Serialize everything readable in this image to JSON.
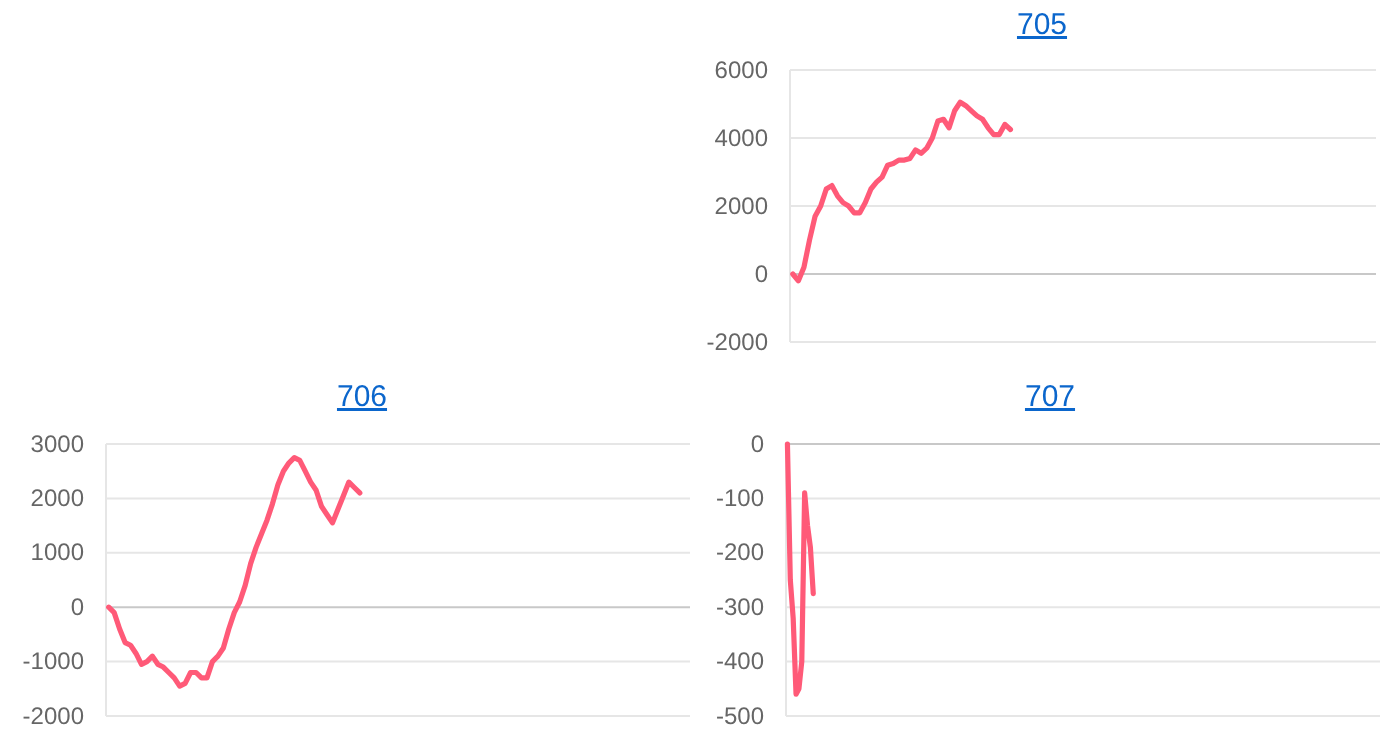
{
  "chart_data": [
    {
      "type": "line",
      "title": "705",
      "color": "#ff5a78",
      "ylim": [
        -2000,
        6000
      ],
      "yticks": [
        -2000,
        0,
        2000,
        4000,
        6000
      ],
      "grid": "y",
      "tick_labels": "y",
      "marker": "none",
      "line_style": "solid",
      "categories": [
        null,
        null,
        null,
        null,
        null,
        null,
        null,
        null,
        null,
        null,
        null,
        null,
        null,
        null,
        null,
        null,
        null,
        null,
        null,
        null,
        null,
        null,
        null,
        null,
        null,
        null,
        null,
        null,
        null,
        null,
        null,
        null,
        null,
        null,
        null,
        null,
        null,
        null,
        null,
        null,
        null,
        null,
        null,
        null,
        null,
        null,
        null,
        null,
        null,
        null,
        null,
        null,
        null,
        null,
        null,
        null,
        null,
        null,
        null,
        null,
        null,
        null,
        null,
        null,
        null,
        null,
        null,
        null,
        null,
        null,
        null,
        null,
        null,
        null,
        null,
        null,
        null,
        null,
        null,
        null,
        null,
        null,
        null,
        null,
        null,
        null,
        null,
        null,
        null,
        null,
        null,
        null,
        null,
        null,
        null,
        null,
        null,
        null,
        null,
        null,
        null,
        null,
        null,
        null,
        null
      ],
      "values": [
        0,
        -200,
        200,
        1000,
        1700,
        2000,
        2500,
        2600,
        2300,
        2100,
        2000,
        1800,
        1800,
        2100,
        2500,
        2700,
        2850,
        3200,
        3250,
        3350,
        3350,
        3400,
        3650,
        3550,
        3700,
        4000,
        4500,
        4550,
        4300,
        4800,
        5050,
        4950,
        4800,
        4650,
        4550,
        4300,
        4100,
        4100,
        4400,
        4250,
        null,
        null,
        null,
        null,
        null,
        null,
        null,
        null,
        null,
        null,
        null,
        null,
        null,
        null,
        null,
        null,
        null,
        null,
        null,
        null,
        null,
        null,
        null,
        null,
        null,
        null,
        null,
        null,
        null,
        null,
        null,
        null,
        null,
        null,
        null,
        null,
        null,
        null,
        null,
        null,
        null,
        null,
        null,
        null,
        null,
        null,
        null,
        null,
        null,
        null,
        null,
        null,
        null,
        null,
        null,
        null,
        null,
        null,
        null,
        null,
        null,
        null,
        null,
        null,
        null
      ]
    },
    {
      "type": "line",
      "title": "706",
      "color": "#ff5a78",
      "ylim": [
        -2000,
        3000
      ],
      "yticks": [
        -2000,
        -1000,
        0,
        1000,
        2000,
        3000
      ],
      "grid": "y",
      "tick_labels": "y",
      "marker": "none",
      "line_style": "solid",
      "categories": [
        null,
        null,
        null,
        null,
        null,
        null,
        null,
        null,
        null,
        null,
        null,
        null,
        null,
        null,
        null,
        null,
        null,
        null,
        null,
        null,
        null,
        null,
        null,
        null,
        null,
        null,
        null,
        null,
        null,
        null,
        null,
        null,
        null,
        null,
        null,
        null,
        null,
        null,
        null,
        null,
        null,
        null,
        null,
        null,
        null,
        null,
        null,
        null,
        null,
        null,
        null,
        null,
        null,
        null,
        null,
        null,
        null,
        null,
        null,
        null,
        null,
        null,
        null,
        null,
        null,
        null,
        null,
        null,
        null,
        null,
        null,
        null,
        null,
        null,
        null,
        null,
        null,
        null,
        null,
        null,
        null,
        null,
        null,
        null,
        null,
        null,
        null,
        null,
        null,
        null,
        null,
        null,
        null,
        null,
        null,
        null,
        null,
        null,
        null,
        null,
        null,
        null,
        null,
        null,
        null,
        null,
        null
      ],
      "values": [
        0,
        -100,
        -400,
        -650,
        -700,
        -850,
        -1050,
        -1000,
        -900,
        -1050,
        -1100,
        -1200,
        -1300,
        -1450,
        -1400,
        -1200,
        -1200,
        -1300,
        -1300,
        -1000,
        -900,
        -750,
        -400,
        -100,
        100,
        400,
        800,
        1100,
        1350,
        1600,
        1900,
        2250,
        2500,
        2650,
        2750,
        2700,
        2500,
        2300,
        2150,
        1850,
        1700,
        1550,
        1800,
        2050,
        2300,
        2200,
        2100,
        null,
        null,
        null,
        null,
        null,
        null,
        null,
        null,
        null,
        null,
        null,
        null,
        null,
        null,
        null,
        null,
        null,
        null,
        null,
        null,
        null,
        null,
        null,
        null,
        null,
        null,
        null,
        null,
        null,
        null,
        null,
        null,
        null,
        null,
        null,
        null,
        null,
        null,
        null,
        null,
        null,
        null,
        null,
        null,
        null,
        null,
        null,
        null,
        null,
        null,
        null,
        null,
        null,
        null,
        null,
        null,
        null,
        null,
        null,
        null
      ]
    },
    {
      "type": "line",
      "title": "707",
      "color": "#ff5a78",
      "ylim": [
        -500,
        0
      ],
      "yticks": [
        -500,
        -400,
        -300,
        -200,
        -100,
        0
      ],
      "grid": "y",
      "tick_labels": "y",
      "marker": "none",
      "line_style": "solid",
      "categories": [
        null,
        null,
        null,
        null,
        null,
        null,
        null,
        null,
        null,
        null,
        null,
        null,
        null,
        null,
        null,
        null,
        null,
        null,
        null,
        null,
        null,
        null,
        null,
        null,
        null,
        null,
        null,
        null,
        null,
        null,
        null,
        null,
        null,
        null,
        null,
        null,
        null,
        null,
        null,
        null,
        null,
        null,
        null,
        null,
        null,
        null,
        null,
        null,
        null,
        null,
        null,
        null,
        null,
        null,
        null,
        null,
        null,
        null,
        null,
        null,
        null,
        null,
        null,
        null,
        null,
        null,
        null,
        null,
        null,
        null,
        null,
        null,
        null,
        null,
        null,
        null,
        null,
        null,
        null,
        null,
        null,
        null,
        null,
        null,
        null,
        null,
        null,
        null,
        null,
        null,
        null,
        null,
        null,
        null,
        null,
        null,
        null,
        null,
        null,
        null,
        null,
        null,
        null,
        null,
        null,
        null,
        null,
        null,
        null,
        null,
        null,
        null,
        null,
        null,
        null,
        null,
        null,
        null,
        null,
        null,
        null,
        null,
        null,
        null,
        null,
        null,
        null,
        null,
        null,
        null,
        null,
        null,
        null,
        null,
        null,
        null,
        null,
        null,
        null,
        null,
        null,
        null,
        null,
        null,
        null,
        null,
        null,
        null,
        null,
        null,
        null,
        null,
        null,
        null,
        null,
        null,
        null,
        null,
        null,
        null,
        null,
        null,
        null,
        null,
        null,
        null,
        null,
        null,
        null,
        null,
        null,
        null,
        null,
        null,
        null,
        null,
        null,
        null,
        null,
        null,
        null,
        null,
        null,
        null,
        null,
        null,
        null,
        null,
        null,
        null,
        null,
        null,
        null,
        null,
        null,
        null,
        null,
        null,
        null,
        null,
        null,
        null,
        null,
        null,
        null,
        null,
        null
      ],
      "values": [
        0,
        -250,
        -320,
        -460,
        -450,
        -400,
        -90,
        -150,
        -190,
        -275,
        null,
        null,
        null,
        null,
        null,
        null,
        null,
        null,
        null,
        null,
        null,
        null,
        null,
        null,
        null,
        null,
        null,
        null,
        null,
        null,
        null,
        null,
        null,
        null,
        null,
        null,
        null,
        null,
        null,
        null,
        null,
        null,
        null,
        null,
        null,
        null,
        null,
        null,
        null,
        null,
        null,
        null,
        null,
        null,
        null,
        null,
        null,
        null,
        null,
        null,
        null,
        null,
        null,
        null,
        null,
        null,
        null,
        null,
        null,
        null,
        null,
        null,
        null,
        null,
        null,
        null,
        null,
        null,
        null,
        null,
        null,
        null,
        null,
        null,
        null,
        null,
        null,
        null,
        null,
        null,
        null,
        null,
        null,
        null,
        null,
        null,
        null,
        null,
        null,
        null,
        null,
        null,
        null,
        null,
        null,
        null,
        null,
        null,
        null,
        null,
        null,
        null,
        null,
        null,
        null,
        null,
        null,
        null,
        null,
        null,
        null,
        null,
        null,
        null,
        null,
        null,
        null,
        null,
        null,
        null,
        null,
        null,
        null,
        null,
        null,
        null,
        null,
        null,
        null,
        null,
        null,
        null,
        null,
        null,
        null,
        null,
        null,
        null,
        null,
        null,
        null,
        null,
        null,
        null,
        null,
        null,
        null,
        null,
        null,
        null,
        null,
        null,
        null,
        null,
        null,
        null,
        null,
        null,
        null,
        null,
        null,
        null,
        null,
        null,
        null,
        null,
        null,
        null,
        null,
        null,
        null,
        null,
        null,
        null,
        null,
        null,
        null,
        null,
        null,
        null,
        null,
        null,
        null,
        null,
        null,
        null,
        null,
        null,
        null,
        null,
        null,
        null,
        null,
        null,
        null,
        null,
        null
      ]
    }
  ]
}
